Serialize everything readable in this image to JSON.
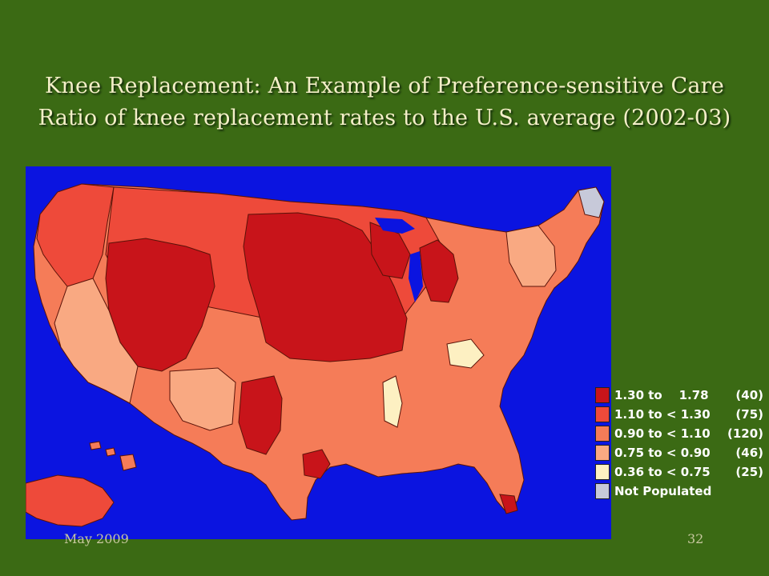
{
  "slide": {
    "title_line1": "Knee Replacement: An Example of Preference-sensitive Care",
    "title_line2": "Ratio of knee replacement rates to the U.S. average (2002-03)",
    "footer_date": "May 2009",
    "page_number": "32"
  },
  "map": {
    "background_color": "#0b14e0",
    "legend": [
      {
        "range": "1.30 to    1.78",
        "count": "(40)",
        "color": "#c8141a"
      },
      {
        "range": "1.10 to < 1.30",
        "count": "(75)",
        "color": "#ee4a3a"
      },
      {
        "range": "0.90 to < 1.10",
        "count": "(120)",
        "color": "#f57c58"
      },
      {
        "range": "0.75 to < 0.90",
        "count": "(46)",
        "color": "#f9a982"
      },
      {
        "range": "0.36 to < 0.75",
        "count": "(25)",
        "color": "#fdf0c2"
      },
      {
        "range": "Not Populated",
        "count": "",
        "color": "#c7c9d9"
      }
    ]
  }
}
